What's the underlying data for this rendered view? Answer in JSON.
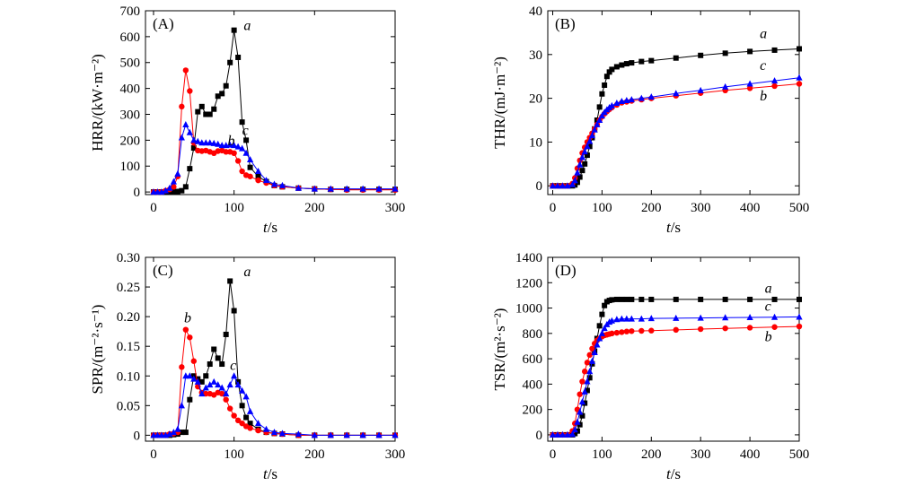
{
  "chart_data": [
    {
      "panel": "(A)",
      "type": "line",
      "xlabel": "t/s",
      "ylabel": "HRR/(kW·m⁻²)",
      "xlim": [
        -10,
        300
      ],
      "ylim": [
        -10,
        700
      ],
      "xticks": [
        0,
        100,
        200,
        300
      ],
      "yticks": [
        0,
        100,
        200,
        300,
        400,
        500,
        600,
        700
      ],
      "series": [
        {
          "name": "a",
          "color": "#000000",
          "marker": "square",
          "x": [
            0,
            5,
            10,
            15,
            20,
            25,
            30,
            35,
            40,
            45,
            50,
            55,
            60,
            65,
            70,
            75,
            80,
            85,
            90,
            95,
            100,
            105,
            110,
            115,
            120,
            130,
            140,
            150,
            160,
            180,
            200,
            220,
            240,
            260,
            280,
            300
          ],
          "y": [
            0,
            0,
            0,
            0,
            0,
            1,
            2,
            5,
            20,
            90,
            170,
            310,
            330,
            300,
            300,
            320,
            370,
            380,
            410,
            500,
            625,
            520,
            270,
            200,
            95,
            60,
            40,
            25,
            20,
            15,
            12,
            10,
            10,
            10,
            10,
            10
          ]
        },
        {
          "name": "b",
          "color": "#ff0000",
          "marker": "circle",
          "x": [
            0,
            5,
            10,
            15,
            20,
            25,
            30,
            35,
            40,
            45,
            50,
            55,
            60,
            65,
            70,
            75,
            80,
            85,
            90,
            95,
            100,
            105,
            110,
            115,
            120,
            130,
            140,
            150,
            160,
            180,
            200,
            220,
            240,
            260,
            280,
            300
          ],
          "y": [
            0,
            0,
            0,
            5,
            10,
            20,
            60,
            330,
            470,
            390,
            190,
            160,
            158,
            160,
            155,
            150,
            158,
            160,
            155,
            155,
            150,
            120,
            80,
            65,
            60,
            45,
            35,
            25,
            20,
            15,
            12,
            10,
            8,
            8,
            8,
            8
          ]
        },
        {
          "name": "c",
          "color": "#0000ff",
          "marker": "triangle",
          "x": [
            0,
            5,
            10,
            15,
            20,
            25,
            30,
            35,
            40,
            45,
            50,
            55,
            60,
            65,
            70,
            75,
            80,
            85,
            90,
            95,
            100,
            105,
            110,
            115,
            120,
            130,
            140,
            150,
            160,
            180,
            200,
            220,
            240,
            260,
            280,
            300
          ],
          "y": [
            0,
            0,
            0,
            5,
            15,
            40,
            70,
            210,
            260,
            230,
            200,
            195,
            190,
            190,
            190,
            188,
            185,
            180,
            180,
            182,
            180,
            175,
            168,
            150,
            125,
            80,
            45,
            30,
            25,
            15,
            12,
            12,
            12,
            12,
            12,
            12
          ]
        }
      ],
      "annotations": [
        {
          "text": "a",
          "x": 112,
          "y": 625
        },
        {
          "text": "c",
          "x": 110,
          "y": 220
        },
        {
          "text": "b",
          "x": 92,
          "y": 180
        }
      ]
    },
    {
      "panel": "(B)",
      "type": "line",
      "xlabel": "t/s",
      "ylabel": "THR/(mJ·m⁻²)",
      "xlim": [
        -10,
        500
      ],
      "ylim": [
        -2,
        40
      ],
      "xticks": [
        0,
        100,
        200,
        300,
        400,
        500
      ],
      "yticks": [
        0,
        10,
        20,
        30,
        40
      ],
      "series": [
        {
          "name": "a",
          "color": "#000000",
          "marker": "square",
          "x": [
            0,
            10,
            20,
            30,
            40,
            45,
            50,
            55,
            60,
            65,
            70,
            75,
            80,
            85,
            90,
            95,
            100,
            105,
            110,
            115,
            120,
            130,
            140,
            150,
            160,
            180,
            200,
            250,
            300,
            350,
            400,
            450,
            500
          ],
          "y": [
            0,
            0,
            0,
            0,
            0,
            0.2,
            0.8,
            2,
            3.5,
            5,
            7,
            9,
            11,
            13,
            15,
            18,
            21,
            23,
            25,
            26,
            26.6,
            27.2,
            27.6,
            27.9,
            28.1,
            28.4,
            28.6,
            29.2,
            29.8,
            30.3,
            30.7,
            31.0,
            31.3
          ]
        },
        {
          "name": "b",
          "color": "#ff0000",
          "marker": "circle",
          "x": [
            0,
            10,
            20,
            30,
            40,
            45,
            50,
            55,
            60,
            65,
            70,
            75,
            80,
            85,
            90,
            95,
            100,
            105,
            110,
            115,
            120,
            130,
            140,
            150,
            160,
            180,
            200,
            250,
            300,
            350,
            400,
            450,
            500
          ],
          "y": [
            0,
            0,
            0,
            0,
            0.5,
            1.8,
            4,
            5.8,
            7.5,
            8.8,
            10,
            11,
            12,
            13,
            14,
            15,
            15.8,
            16.5,
            17,
            17.5,
            17.9,
            18.5,
            19,
            19.2,
            19.4,
            19.7,
            20,
            20.6,
            21.2,
            21.8,
            22.3,
            22.8,
            23.3
          ]
        },
        {
          "name": "c",
          "color": "#0000ff",
          "marker": "triangle",
          "x": [
            0,
            10,
            20,
            30,
            40,
            45,
            50,
            55,
            60,
            65,
            70,
            75,
            80,
            85,
            90,
            95,
            100,
            105,
            110,
            115,
            120,
            130,
            140,
            150,
            160,
            180,
            200,
            250,
            300,
            350,
            400,
            450,
            500
          ],
          "y": [
            0,
            0,
            0,
            0,
            0.3,
            1.2,
            3,
            4.8,
            6.5,
            7.8,
            9,
            10.2,
            11.5,
            12.8,
            14,
            15,
            16,
            16.8,
            17.4,
            17.9,
            18.3,
            18.9,
            19.3,
            19.5,
            19.7,
            20,
            20.3,
            21.1,
            21.8,
            22.6,
            23.3,
            24,
            24.7
          ]
        }
      ],
      "annotations": [
        {
          "text": "a",
          "x": 420,
          "y": 33.8
        },
        {
          "text": "c",
          "x": 420,
          "y": 26.5
        },
        {
          "text": "b",
          "x": 420,
          "y": 19.5
        }
      ]
    },
    {
      "panel": "(C)",
      "type": "line",
      "xlabel": "t/s",
      "ylabel": "SPR/(m⁻²·s⁻¹)",
      "xlim": [
        -10,
        300
      ],
      "ylim": [
        -0.01,
        0.3
      ],
      "xticks": [
        0,
        100,
        200,
        300
      ],
      "yticks": [
        "0",
        "0.05",
        "0.10",
        "0.15",
        "0.20",
        "0.25",
        "0.30"
      ],
      "series": [
        {
          "name": "a",
          "color": "#000000",
          "marker": "square",
          "x": [
            0,
            5,
            10,
            15,
            20,
            25,
            30,
            35,
            40,
            45,
            50,
            55,
            60,
            65,
            70,
            75,
            80,
            85,
            90,
            95,
            100,
            105,
            110,
            115,
            120,
            130,
            140,
            150,
            160,
            180,
            200,
            220,
            240,
            260,
            280,
            300
          ],
          "y": [
            0,
            0,
            0,
            0,
            0,
            0.001,
            0.002,
            0.005,
            0.005,
            0.06,
            0.1,
            0.095,
            0.09,
            0.1,
            0.12,
            0.145,
            0.13,
            0.12,
            0.17,
            0.26,
            0.21,
            0.09,
            0.05,
            0.03,
            0.02,
            0.01,
            0.005,
            0.003,
            0.002,
            0,
            0,
            0,
            0,
            0,
            0,
            0
          ]
        },
        {
          "name": "b",
          "color": "#ff0000",
          "marker": "circle",
          "x": [
            0,
            5,
            10,
            15,
            20,
            25,
            30,
            35,
            40,
            45,
            50,
            55,
            60,
            65,
            70,
            75,
            80,
            85,
            90,
            95,
            100,
            105,
            110,
            115,
            120,
            130,
            140,
            150,
            160,
            180,
            200,
            220,
            240,
            260,
            280,
            300
          ],
          "y": [
            0,
            0,
            0,
            0,
            0.002,
            0.003,
            0.005,
            0.115,
            0.178,
            0.165,
            0.125,
            0.082,
            0.072,
            0.07,
            0.07,
            0.068,
            0.072,
            0.07,
            0.06,
            0.045,
            0.033,
            0.025,
            0.02,
            0.015,
            0.012,
            0.008,
            0.005,
            0.003,
            0.002,
            0,
            0,
            0,
            0,
            0,
            0,
            0
          ]
        },
        {
          "name": "c",
          "color": "#0000ff",
          "marker": "triangle",
          "x": [
            0,
            5,
            10,
            15,
            20,
            25,
            30,
            35,
            40,
            45,
            50,
            55,
            60,
            65,
            70,
            75,
            80,
            85,
            90,
            95,
            100,
            105,
            110,
            115,
            120,
            130,
            140,
            150,
            160,
            180,
            200,
            220,
            240,
            260,
            280,
            300
          ],
          "y": [
            0,
            0,
            0,
            0,
            0.002,
            0.005,
            0.01,
            0.05,
            0.1,
            0.1,
            0.095,
            0.09,
            0.07,
            0.08,
            0.085,
            0.09,
            0.085,
            0.08,
            0.07,
            0.085,
            0.1,
            0.085,
            0.075,
            0.065,
            0.04,
            0.02,
            0.01,
            0.005,
            0.003,
            0.002,
            0,
            0,
            0,
            0,
            0,
            0
          ]
        }
      ],
      "annotations": [
        {
          "text": "a",
          "x": 112,
          "y": 0.268
        },
        {
          "text": "b",
          "x": 38,
          "y": 0.19
        },
        {
          "text": "c",
          "x": 95,
          "y": 0.11
        }
      ]
    },
    {
      "panel": "(D)",
      "type": "line",
      "xlabel": "t/s",
      "ylabel": "TSR/(m²·s⁻²)",
      "xlim": [
        -10,
        500
      ],
      "ylim": [
        -50,
        1400
      ],
      "xticks": [
        0,
        100,
        200,
        300,
        400,
        500
      ],
      "yticks": [
        0,
        200,
        400,
        600,
        800,
        1000,
        1200,
        1400
      ],
      "series": [
        {
          "name": "a",
          "color": "#000000",
          "marker": "square",
          "x": [
            0,
            10,
            20,
            30,
            40,
            45,
            50,
            55,
            60,
            65,
            70,
            75,
            80,
            85,
            90,
            95,
            100,
            105,
            110,
            115,
            120,
            130,
            140,
            150,
            160,
            180,
            200,
            250,
            300,
            350,
            400,
            450,
            500
          ],
          "y": [
            0,
            0,
            0,
            0,
            0,
            10,
            30,
            80,
            150,
            250,
            350,
            450,
            560,
            660,
            760,
            860,
            950,
            1020,
            1050,
            1060,
            1065,
            1068,
            1068,
            1068,
            1068,
            1068,
            1068,
            1068,
            1068,
            1068,
            1068,
            1068,
            1068
          ]
        },
        {
          "name": "b",
          "color": "#ff0000",
          "marker": "circle",
          "x": [
            0,
            10,
            20,
            30,
            40,
            45,
            50,
            55,
            60,
            65,
            70,
            75,
            80,
            85,
            90,
            95,
            100,
            105,
            110,
            115,
            120,
            130,
            140,
            150,
            160,
            180,
            200,
            250,
            300,
            350,
            400,
            450,
            500
          ],
          "y": [
            0,
            0,
            0,
            0,
            30,
            90,
            200,
            320,
            420,
            500,
            570,
            630,
            680,
            720,
            745,
            760,
            775,
            785,
            790,
            795,
            800,
            805,
            810,
            815,
            818,
            820,
            822,
            828,
            834,
            840,
            845,
            850,
            855
          ]
        },
        {
          "name": "c",
          "color": "#0000ff",
          "marker": "triangle",
          "x": [
            0,
            10,
            20,
            30,
            40,
            45,
            50,
            55,
            60,
            65,
            70,
            75,
            80,
            85,
            90,
            95,
            100,
            105,
            110,
            115,
            120,
            130,
            140,
            150,
            160,
            180,
            200,
            250,
            300,
            350,
            400,
            450,
            500
          ],
          "y": [
            0,
            0,
            0,
            0,
            5,
            40,
            100,
            180,
            260,
            340,
            420,
            500,
            580,
            650,
            710,
            760,
            800,
            840,
            870,
            890,
            900,
            910,
            915,
            915,
            915,
            915,
            918,
            920,
            922,
            924,
            926,
            928,
            930
          ]
        }
      ],
      "annotations": [
        {
          "text": "a",
          "x": 430,
          "y": 1120
        },
        {
          "text": "c",
          "x": 430,
          "y": 980
        },
        {
          "text": "b",
          "x": 430,
          "y": 740
        }
      ]
    }
  ]
}
